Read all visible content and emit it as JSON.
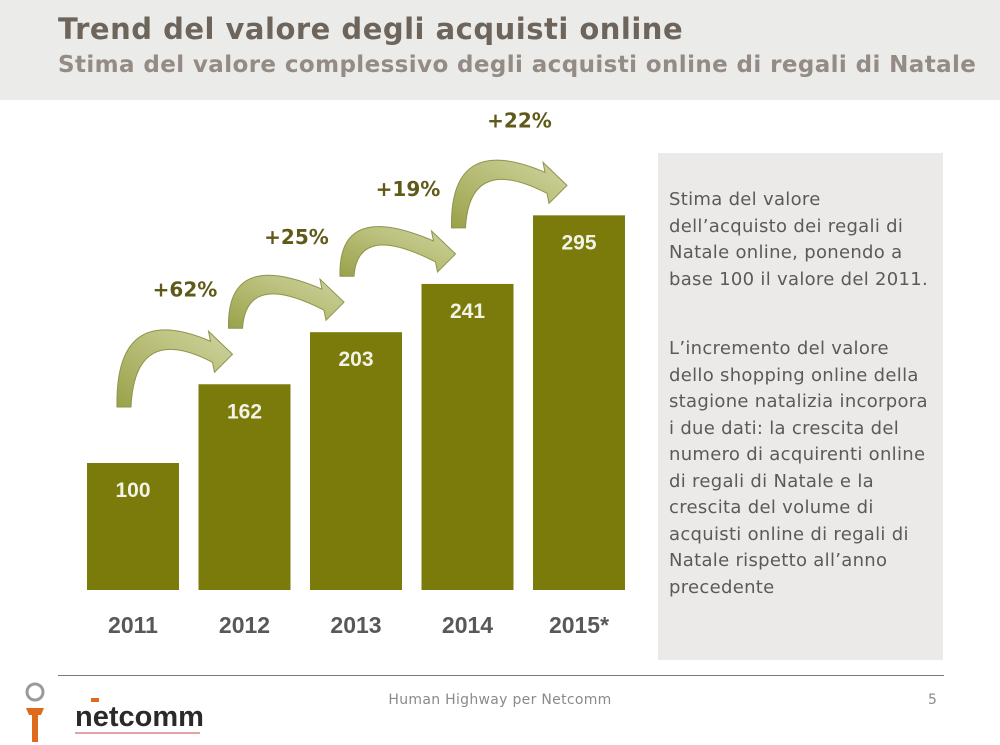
{
  "header": {
    "title": "Trend del valore degli acquisti online",
    "subtitle": "Stima del valore complessivo degli acquisti online di regali di Natale"
  },
  "chart_data": {
    "type": "bar",
    "categories": [
      "2011",
      "2012",
      "2013",
      "2014",
      "2015*"
    ],
    "values": [
      100,
      162,
      203,
      241,
      295
    ],
    "growth_labels": [
      "+62%",
      "+25%",
      "+19%",
      "+22%"
    ],
    "title": "",
    "xlabel": "",
    "ylabel": "",
    "ylim": [
      0,
      400
    ],
    "grid": false,
    "legend": "none",
    "colors": {
      "bar": "#7a7b0b",
      "value_label": "#f2f2e6",
      "growth_label": "#5f5a1a",
      "arrow": "#9aa14a",
      "category_label": "#585858"
    }
  },
  "side_panel": {
    "paragraph1": "Stima del valore dell’acquisto dei regali di Natale online, ponendo a base 100 il valore del 2011.",
    "paragraph2": "L’incremento del valore dello shopping online della stagione natalizia incorpora i due dati: la crescita del numero di acquirenti online di regali di Natale e la crescita del volume di acquisti online di regali di Natale rispetto all’anno precedente"
  },
  "footer": {
    "source": "Human Highway per Netcomm",
    "page": "5",
    "logo_text": "netcomm"
  }
}
